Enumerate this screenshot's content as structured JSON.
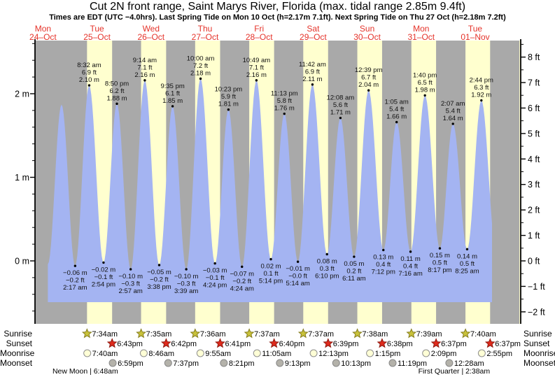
{
  "title": "Cut 2N front range, Saint Marys River, Florida (max. tidal range 2.85m 9.4ft)",
  "subtitle": "Times are EDT (UTC −4.0hrs). Last Spring Tide on Mon 10 Oct (h=2.17m 7.1ft). Next Spring Tide on Thu 27 Oct (h=2.18m 7.2ft)",
  "days": [
    {
      "name": "Mon",
      "date": "24–Oct"
    },
    {
      "name": "Tue",
      "date": "25–Oct"
    },
    {
      "name": "Wed",
      "date": "26–Oct"
    },
    {
      "name": "Thu",
      "date": "27–Oct"
    },
    {
      "name": "Fri",
      "date": "28–Oct"
    },
    {
      "name": "Sat",
      "date": "29–Oct"
    },
    {
      "name": "Sun",
      "date": "30–Oct"
    },
    {
      "name": "Mon",
      "date": "31–Oct"
    },
    {
      "name": "Tue",
      "date": "01–Nov"
    }
  ],
  "axes": {
    "left_tick_labels": [
      "2 m",
      "1 m",
      "0 m"
    ],
    "left_tick_values": [
      2,
      1,
      0
    ],
    "right_tick_labels": [
      "8 ft",
      "7 ft",
      "6 ft",
      "5 ft",
      "4 ft",
      "3 ft",
      "2 ft",
      "1 ft",
      "0 ft",
      "−1 ft",
      "−2 ft"
    ],
    "right_tick_values": [
      8,
      7,
      6,
      5,
      4,
      3,
      2,
      1,
      0,
      -1,
      -2
    ]
  },
  "chart_data": {
    "type": "area",
    "x_range": "Mon 24-Oct through Tue 01-Nov",
    "ylabel_left": "meters",
    "ylabel_right": "feet",
    "ylim_m": [
      -0.75,
      2.64
    ],
    "grid": false,
    "tide_events": [
      {
        "day": 0,
        "time": "2:10 pm",
        "m": "−0.04",
        "ft": "",
        "type": "low",
        "annotated": false
      },
      {
        "day": 0,
        "time": "8:15 pm",
        "m": "1.87",
        "ft": "",
        "type": "high",
        "annotated": false
      },
      {
        "day": 1,
        "time": "2:17 am",
        "m": "−0.06",
        "ft": "−0.2",
        "type": "low"
      },
      {
        "day": 1,
        "time": "8:32 am",
        "m": "2.10",
        "ft": "6.9",
        "type": "high"
      },
      {
        "day": 1,
        "time": "2:54 pm",
        "m": "−0.02",
        "ft": "−0.1",
        "type": "low"
      },
      {
        "day": 1,
        "time": "8:50 pm",
        "m": "1.88",
        "ft": "6.2",
        "type": "high"
      },
      {
        "day": 2,
        "time": "2:57 am",
        "m": "−0.10",
        "ft": "−0.3",
        "type": "low"
      },
      {
        "day": 2,
        "time": "9:14 am",
        "m": "2.16",
        "ft": "7.1",
        "type": "high"
      },
      {
        "day": 2,
        "time": "3:38 pm",
        "m": "−0.05",
        "ft": "−0.2",
        "type": "low"
      },
      {
        "day": 2,
        "time": "9:35 pm",
        "m": "1.85",
        "ft": "6.1",
        "type": "high"
      },
      {
        "day": 3,
        "time": "3:39 am",
        "m": "−0.10",
        "ft": "−0.3",
        "type": "low"
      },
      {
        "day": 3,
        "time": "10:00 am",
        "m": "2.18",
        "ft": "7.2",
        "type": "high"
      },
      {
        "day": 3,
        "time": "4:24 pm",
        "m": "−0.03",
        "ft": "−0.1",
        "type": "low"
      },
      {
        "day": 3,
        "time": "10:23 pm",
        "m": "1.81",
        "ft": "5.9",
        "type": "high"
      },
      {
        "day": 4,
        "time": "4:24 am",
        "m": "−0.07",
        "ft": "−0.2",
        "type": "low"
      },
      {
        "day": 4,
        "time": "10:49 am",
        "m": "2.16",
        "ft": "7.1",
        "type": "high"
      },
      {
        "day": 4,
        "time": "5:14 pm",
        "m": "0.02",
        "ft": "0.1",
        "type": "low"
      },
      {
        "day": 4,
        "time": "11:13 pm",
        "m": "1.76",
        "ft": "5.8",
        "type": "high"
      },
      {
        "day": 5,
        "time": "5:14 am",
        "m": "−0.01",
        "ft": "−0.0",
        "type": "low"
      },
      {
        "day": 5,
        "time": "11:42 am",
        "m": "2.11",
        "ft": "6.9",
        "type": "high"
      },
      {
        "day": 5,
        "time": "6:10 pm",
        "m": "0.08",
        "ft": "0.3",
        "type": "low"
      },
      {
        "day": 6,
        "time": "12:08 am",
        "m": "1.71",
        "ft": "5.6",
        "type": "high"
      },
      {
        "day": 6,
        "time": "6:11 am",
        "m": "0.05",
        "ft": "0.2",
        "type": "low"
      },
      {
        "day": 6,
        "time": "12:39 pm",
        "m": "2.04",
        "ft": "6.7",
        "type": "high"
      },
      {
        "day": 6,
        "time": "7:12 pm",
        "m": "0.13",
        "ft": "0.4",
        "type": "low"
      },
      {
        "day": 7,
        "time": "1:05 am",
        "m": "1.66",
        "ft": "5.4",
        "type": "high"
      },
      {
        "day": 7,
        "time": "7:16 am",
        "m": "0.11",
        "ft": "0.4",
        "type": "low"
      },
      {
        "day": 7,
        "time": "1:40 pm",
        "m": "1.98",
        "ft": "6.5",
        "type": "high"
      },
      {
        "day": 7,
        "time": "8:17 pm",
        "m": "0.15",
        "ft": "0.5",
        "type": "low"
      },
      {
        "day": 8,
        "time": "2:07 am",
        "m": "1.64",
        "ft": "5.4",
        "type": "high"
      },
      {
        "day": 8,
        "time": "8:25 am",
        "m": "0.14",
        "ft": "0.5",
        "type": "low"
      },
      {
        "day": 8,
        "time": "2:44 pm",
        "m": "1.92",
        "ft": "6.3",
        "type": "high"
      },
      {
        "day": 8,
        "time": "9:10 pm",
        "m": "0.16",
        "ft": "",
        "type": "low",
        "annotated": false
      }
    ]
  },
  "astro": {
    "rows": [
      {
        "key": "sunrise",
        "label": "Sunrise",
        "icon": "sunrise-star-icon",
        "times": [
          {
            "day": 1,
            "time": "7:34am"
          },
          {
            "day": 2,
            "time": "7:35am"
          },
          {
            "day": 3,
            "time": "7:36am"
          },
          {
            "day": 4,
            "time": "7:37am"
          },
          {
            "day": 5,
            "time": "7:37am"
          },
          {
            "day": 6,
            "time": "7:38am"
          },
          {
            "day": 7,
            "time": "7:39am"
          },
          {
            "day": 8,
            "time": "7:40am"
          }
        ]
      },
      {
        "key": "sunset",
        "label": "Sunset",
        "icon": "sunset-star-icon",
        "times": [
          {
            "day": 1,
            "time": "6:43pm"
          },
          {
            "day": 2,
            "time": "6:42pm"
          },
          {
            "day": 3,
            "time": "6:41pm"
          },
          {
            "day": 4,
            "time": "6:40pm"
          },
          {
            "day": 5,
            "time": "6:39pm"
          },
          {
            "day": 6,
            "time": "6:38pm"
          },
          {
            "day": 7,
            "time": "6:37pm"
          },
          {
            "day": 8,
            "time": "6:37pm"
          }
        ]
      },
      {
        "key": "moonrise",
        "label": "Moonrise",
        "icon": "moonrise-circle-icon",
        "times": [
          {
            "day": 1,
            "time": "7:40am"
          },
          {
            "day": 2,
            "time": "8:46am"
          },
          {
            "day": 3,
            "time": "9:55am"
          },
          {
            "day": 4,
            "time": "11:05am"
          },
          {
            "day": 5,
            "time": "12:13pm"
          },
          {
            "day": 6,
            "time": "1:15pm"
          },
          {
            "day": 7,
            "time": "2:09pm"
          },
          {
            "day": 8,
            "time": "2:55pm"
          }
        ]
      },
      {
        "key": "moonset",
        "label": "Moonset",
        "icon": "moonset-circle-icon",
        "times": [
          {
            "day": 1,
            "time": "6:59pm"
          },
          {
            "day": 2,
            "time": "7:37pm"
          },
          {
            "day": 3,
            "time": "8:21pm"
          },
          {
            "day": 4,
            "time": "9:13pm"
          },
          {
            "day": 5,
            "time": "10:13pm"
          },
          {
            "day": 6,
            "time": "11:19pm"
          },
          {
            "day": 8,
            "time": "12:28am"
          }
        ]
      }
    ],
    "notes": [
      {
        "day": 1,
        "time": "6:48am",
        "label": "New Moon | 6:48am"
      },
      {
        "day": 8,
        "time": "2:38am",
        "label": "First Quarter | 2:38am"
      }
    ]
  },
  "colors": {
    "night_band": "#a9a9a9",
    "day_band": "#ffffcf",
    "water": "#a4b4f2",
    "date_red": "#e5332a",
    "annotation_text": "#111111",
    "axis_line": "#000000",
    "sunrise_star": "#c9c23a",
    "sunrise_star_stroke": "#857d1e",
    "sunset_star": "#e02a1c",
    "sunset_star_stroke": "#8f1a10",
    "moonrise_circle": "#ffffd6",
    "moonrise_circle_stroke": "#8f8f8f",
    "moonset_circle": "#b4b2aa",
    "moonset_circle_stroke": "#888888"
  }
}
